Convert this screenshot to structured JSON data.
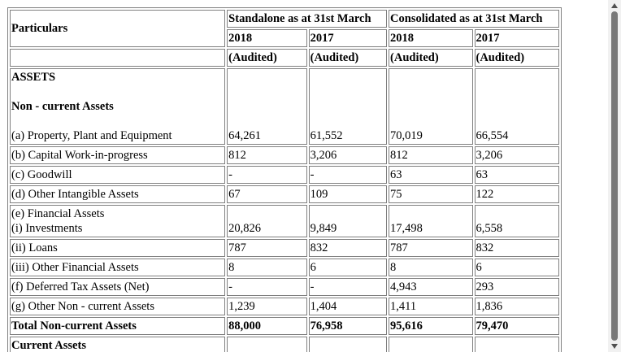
{
  "table": {
    "header": {
      "particulars": "Particulars",
      "groups": [
        "Standalone as at 31st March",
        "Consolidated as at 31st March"
      ],
      "years": [
        "2018",
        "2017",
        "2018",
        "2017"
      ],
      "audited": [
        "(Audited)",
        "(Audited)",
        "(Audited)",
        "(Audited)"
      ]
    },
    "rows": [
      {
        "headings": [
          "ASSETS",
          "Non - current Assets"
        ],
        "label": "(a) Property, Plant and Equipment",
        "values": [
          "64,261",
          "61,552",
          "70,019",
          "66,554"
        ]
      },
      {
        "label": "(b) Capital Work-in-progress",
        "values": [
          "812",
          "3,206",
          "812",
          "3,206"
        ]
      },
      {
        "label": "(c) Goodwill",
        "values": [
          "-",
          "-",
          "63",
          "63"
        ]
      },
      {
        "label": "(d) Other Intangible Assets",
        "values": [
          "67",
          "109",
          "75",
          "122"
        ]
      },
      {
        "headings": [
          "(e) Financial Assets"
        ],
        "label": "(i) Investments",
        "values": [
          "20,826",
          "9,849",
          "17,498",
          "6,558"
        ]
      },
      {
        "label": "(ii) Loans",
        "values": [
          "787",
          "832",
          "787",
          "832"
        ]
      },
      {
        "label": "(iii) Other Financial Assets",
        "values": [
          "8",
          "6",
          "8",
          "6"
        ]
      },
      {
        "label": "(f) Deferred Tax Assets (Net)",
        "values": [
          "-",
          "-",
          "4,943",
          "293"
        ]
      },
      {
        "label": "(g) Other Non - current Assets",
        "values": [
          "1,239",
          "1,404",
          "1,411",
          "1,836"
        ]
      },
      {
        "label": "Total Non-current Assets",
        "values": [
          "88,000",
          "76,958",
          "95,616",
          "79,470"
        ]
      },
      {
        "label": "Current Assets"
      }
    ]
  }
}
